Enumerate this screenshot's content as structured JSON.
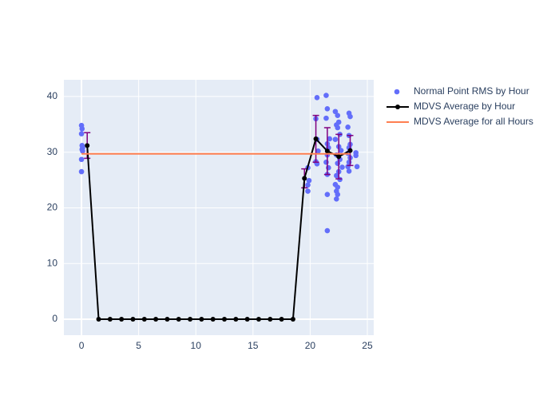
{
  "chart_data": {
    "type": "scatter",
    "xlim": [
      -1.54,
      25.56
    ],
    "ylim": [
      -2.87,
      43.0
    ],
    "xticks": [
      0,
      5,
      10,
      15,
      20,
      25
    ],
    "yticks": [
      0,
      10,
      20,
      30,
      40
    ],
    "grid": true,
    "legend": "right",
    "background": "#e5ecf6",
    "series": [
      {
        "name": "Normal Point RMS by Hour",
        "type": "scatter",
        "color": "#636efa",
        "x": [
          0.0,
          0.05,
          0.0,
          0.05,
          0.1,
          0.05,
          0.1,
          0.0,
          0.0,
          19.8,
          19.9,
          19.8,
          19.8,
          20.6,
          20.5,
          20.6,
          20.7,
          20.5,
          20.6,
          21.4,
          21.5,
          21.4,
          21.7,
          21.5,
          21.6,
          21.5,
          21.4,
          21.6,
          21.5,
          21.5,
          21.5,
          22.2,
          22.4,
          22.5,
          22.3,
          22.4,
          22.6,
          22.2,
          22.5,
          22.7,
          22.3,
          22.6,
          22.4,
          22.8,
          22.5,
          22.3,
          22.6,
          22.2,
          22.4,
          22.3,
          22.4,
          22.3,
          23.4,
          23.5,
          23.3,
          23.4,
          23.5,
          23.4,
          23.3,
          23.5,
          23.4,
          23.3,
          23.4,
          24.0,
          24.0,
          24.1
        ],
        "values": [
          34.8,
          34.2,
          33.3,
          31.2,
          30.8,
          30.5,
          30.2,
          28.7,
          26.5,
          27.2,
          24.9,
          24.1,
          23.0,
          39.8,
          36.0,
          32.3,
          30.2,
          28.3,
          27.9,
          40.2,
          37.8,
          36.1,
          32.4,
          31.5,
          30.8,
          29.5,
          28.2,
          27.2,
          26.0,
          22.4,
          15.9,
          37.3,
          36.6,
          35.4,
          34.9,
          34.4,
          33.2,
          32.3,
          31.0,
          30.3,
          29.5,
          28.7,
          28.0,
          27.3,
          26.5,
          25.8,
          25.1,
          24.2,
          23.7,
          23.0,
          22.4,
          21.6,
          37.0,
          36.4,
          34.5,
          33.0,
          31.4,
          30.8,
          29.8,
          29.0,
          28.2,
          27.4,
          26.6,
          29.9,
          29.4,
          27.4
        ]
      },
      {
        "name": "MDVS Average by Hour",
        "type": "line",
        "color": "#000000",
        "error_color": "#800080",
        "x": [
          0.5,
          1.5,
          2.5,
          3.5,
          4.5,
          5.5,
          6.5,
          7.5,
          8.5,
          9.5,
          10.5,
          11.5,
          12.5,
          13.5,
          14.5,
          15.5,
          16.5,
          17.5,
          18.5,
          19.5,
          20.5,
          21.5,
          22.5,
          23.5
        ],
        "values": [
          31.2,
          0,
          0,
          0,
          0,
          0,
          0,
          0,
          0,
          0,
          0,
          0,
          0,
          0,
          0,
          0,
          0,
          0,
          0,
          25.3,
          32.4,
          30.2,
          29.2,
          30.3
        ],
        "errors": [
          2.3,
          null,
          null,
          null,
          null,
          null,
          null,
          null,
          null,
          null,
          null,
          null,
          null,
          null,
          null,
          null,
          null,
          null,
          null,
          1.7,
          4.2,
          4.2,
          4.0,
          2.7
        ]
      },
      {
        "name": "MDVS Average for all Hours",
        "type": "line",
        "color": "#ff7f50",
        "x": [
          0,
          23.5
        ],
        "values": [
          29.7,
          29.7
        ]
      }
    ]
  }
}
